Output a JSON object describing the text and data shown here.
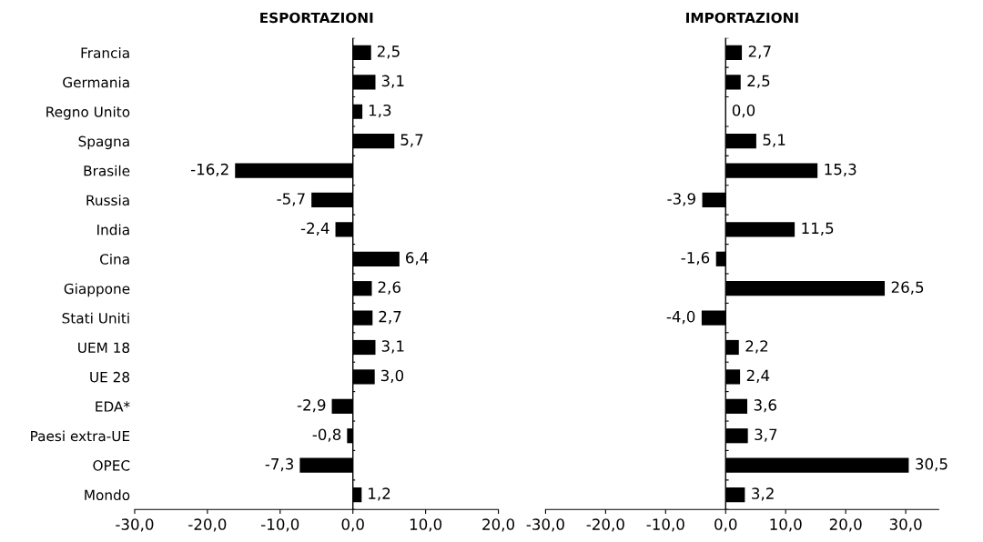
{
  "chart_data": [
    {
      "type": "bar",
      "orientation": "horizontal",
      "title": "ESPORTAZIONI",
      "categories": [
        "Francia",
        "Germania",
        "Regno Unito",
        "Spagna",
        "Brasile",
        "Russia",
        "India",
        "Cina",
        "Giappone",
        "Stati Uniti",
        "UEM 18",
        "UE 28",
        "EDA*",
        "Paesi extra-UE",
        "OPEC",
        "Mondo"
      ],
      "values": [
        2.5,
        3.1,
        1.3,
        5.7,
        -16.2,
        -5.7,
        -2.4,
        6.4,
        2.6,
        2.7,
        3.1,
        3.0,
        -2.9,
        -0.8,
        -7.3,
        1.2
      ],
      "value_labels": [
        "2,5",
        "3,1",
        "1,3",
        "5,7",
        "-16,2",
        "-5,7",
        "-2,4",
        "6,4",
        "2,6",
        "2,7",
        "3,1",
        "3,0",
        "-2,9",
        "-0,8",
        "-7,3",
        "1,2"
      ],
      "color": "#000000",
      "xlim": [
        -30,
        20
      ],
      "xticks": [
        {
          "value": -30,
          "label": "-30,0"
        },
        {
          "value": -20,
          "label": "-20,0"
        },
        {
          "value": -10,
          "label": "-10,0"
        },
        {
          "value": 0,
          "label": "0,0"
        },
        {
          "value": 10,
          "label": "10,0"
        },
        {
          "value": 20,
          "label": "20,0"
        }
      ]
    },
    {
      "type": "bar",
      "orientation": "horizontal",
      "title": "IMPORTAZIONI",
      "tick_labels": "x",
      "categories": [
        null,
        null,
        null,
        null,
        null,
        null,
        null,
        null,
        null,
        null,
        null,
        null,
        null,
        null,
        null,
        null
      ],
      "values": [
        2.7,
        2.5,
        0.0,
        5.1,
        15.3,
        -3.9,
        11.5,
        -1.6,
        26.5,
        -4.0,
        2.2,
        2.4,
        3.6,
        3.7,
        30.5,
        3.2
      ],
      "value_labels": [
        "2,7",
        "2,5",
        "0,0",
        "5,1",
        "15,3",
        "-3,9",
        "11,5",
        "-1,6",
        "26,5",
        "-4,0",
        "2,2",
        "2,4",
        "3,6",
        "3,7",
        "30,5",
        "3,2"
      ],
      "color": "#000000",
      "xlim": [
        -30,
        35.5
      ],
      "xticks": [
        {
          "value": -30,
          "label": "-30,0"
        },
        {
          "value": -20,
          "label": "-20,0"
        },
        {
          "value": -10,
          "label": "-10,0"
        },
        {
          "value": 0,
          "label": "0,0"
        },
        {
          "value": 10,
          "label": "10,0"
        },
        {
          "value": 20,
          "label": "20,0"
        },
        {
          "value": 30,
          "label": "30,0"
        }
      ]
    }
  ]
}
